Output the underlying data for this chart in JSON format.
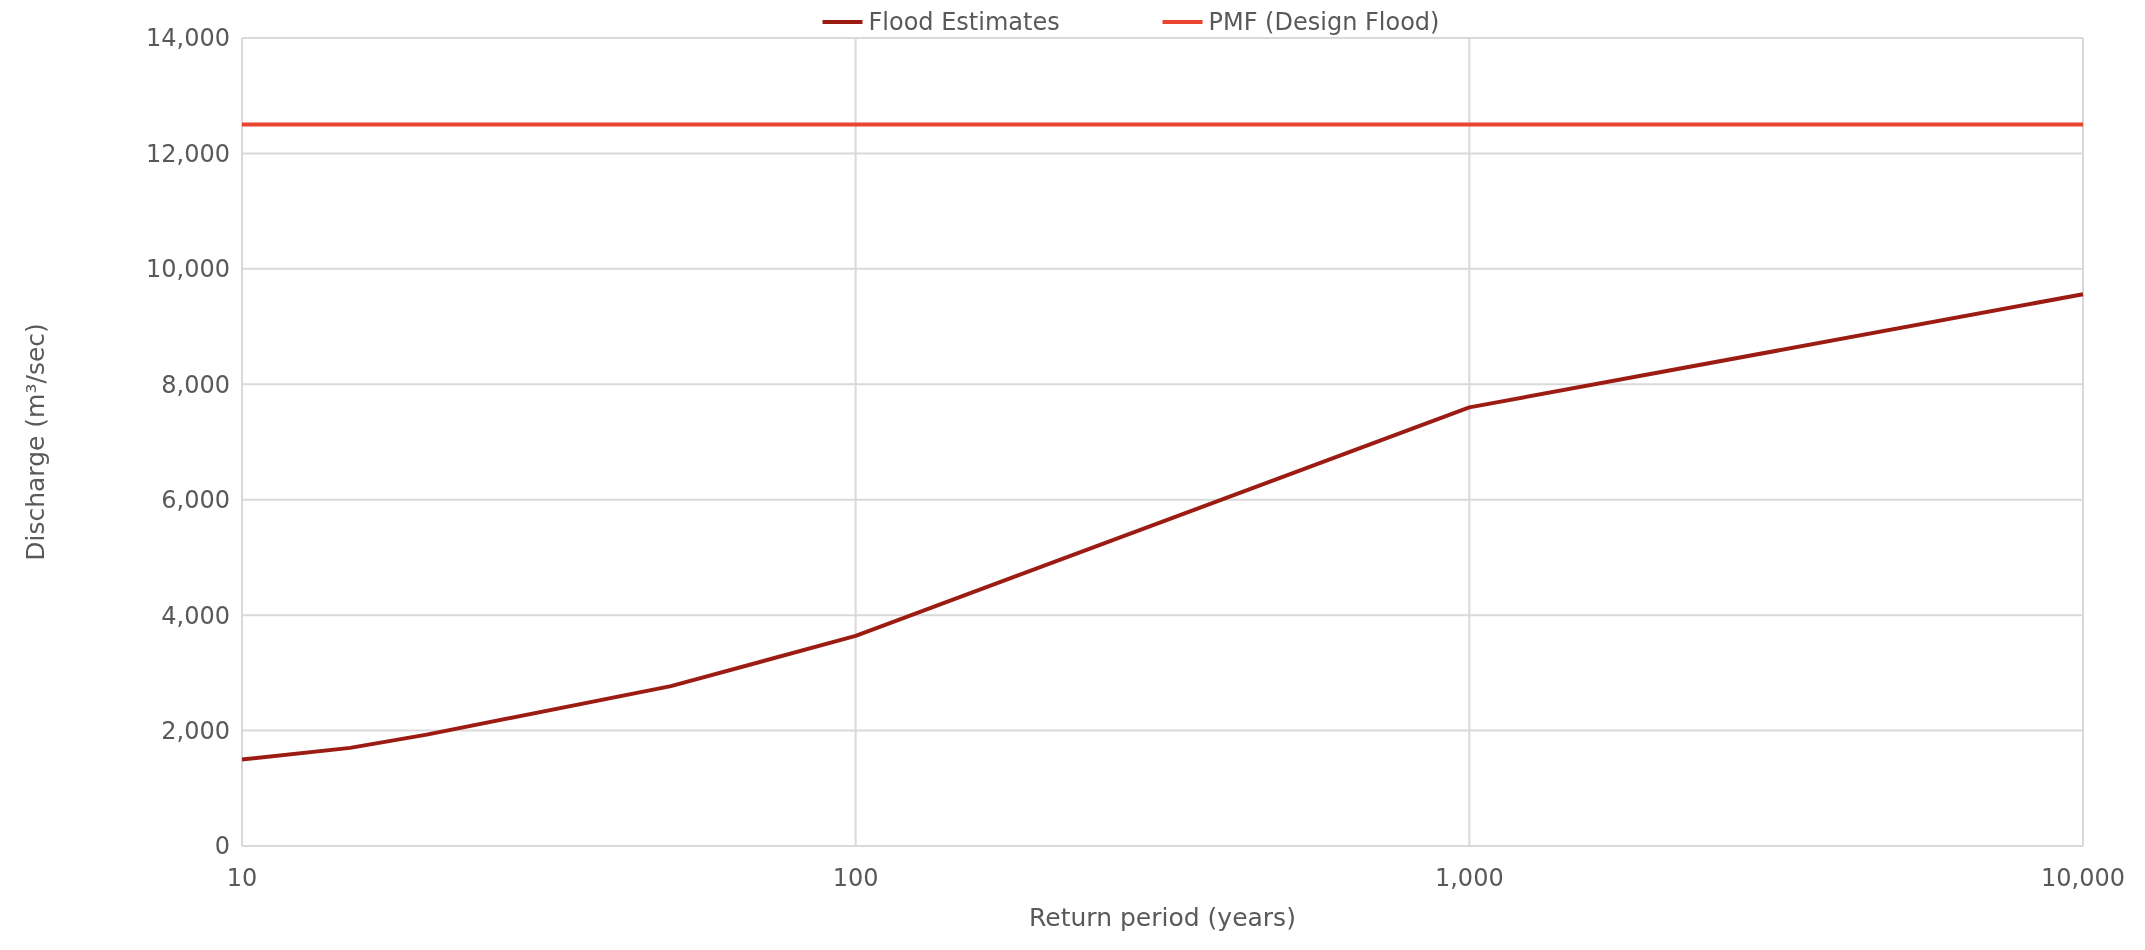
{
  "chart_data": {
    "type": "line",
    "xlabel": "Return period (years)",
    "ylabel": "Discharge (m³/sec)",
    "log": "x",
    "xlim": [
      10,
      10000
    ],
    "xticks": [
      10,
      100,
      {
        "value": 1000,
        "label": "1,000"
      },
      {
        "value": 10000,
        "label": "10,000"
      }
    ],
    "ylim": [
      0,
      14000
    ],
    "yticks": [
      0,
      {
        "value": 2000,
        "label": "2,000"
      },
      {
        "value": 4000,
        "label": "4,000"
      },
      {
        "value": 6000,
        "label": "6,000"
      },
      {
        "value": 8000,
        "label": "8,000"
      },
      {
        "value": 10000,
        "label": "10,000"
      },
      {
        "value": 12000,
        "label": "12,000"
      },
      {
        "value": 14000,
        "label": "14,000"
      }
    ],
    "grid": true,
    "legend": "top",
    "marker": "none",
    "line_style": "solid",
    "series": [
      {
        "name": "Flood Estimates",
        "color": "#9c1c14",
        "x": [
          10,
          15,
          20,
          50,
          100,
          1000,
          10000
        ],
        "values": [
          1500,
          1700,
          1930,
          2770,
          3640,
          7600,
          9560
        ]
      },
      {
        "name": "PMF (Design Flood)",
        "color": "#e8442e",
        "x": [
          10,
          10000
        ],
        "values": [
          12500,
          12500
        ]
      }
    ]
  }
}
